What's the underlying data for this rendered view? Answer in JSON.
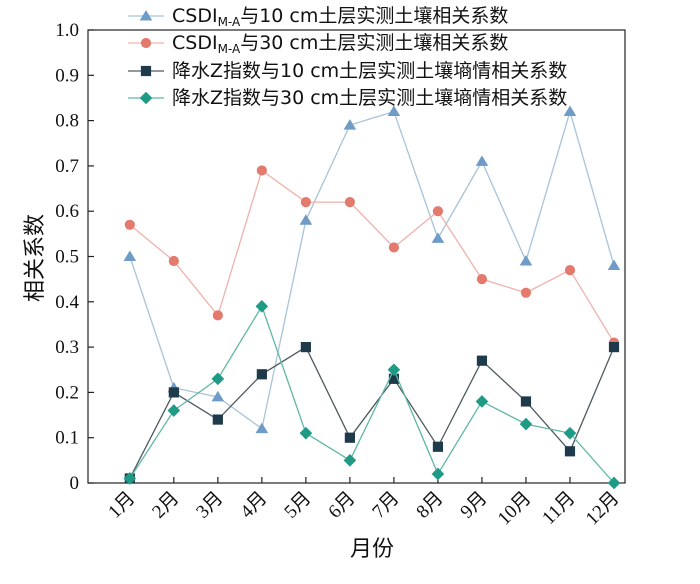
{
  "chart_data": {
    "type": "line",
    "categories": [
      "1月",
      "2月",
      "3月",
      "4月",
      "5月",
      "6月",
      "7月",
      "8月",
      "9月",
      "10月",
      "11月",
      "12月"
    ],
    "xlabel": "月份",
    "ylabel": "相关系数",
    "ylim": [
      0,
      1.0
    ],
    "yticks": [
      "0",
      "0.1",
      "0.2",
      "0.3",
      "0.4",
      "0.5",
      "0.6",
      "0.7",
      "0.8",
      "0.9",
      "1.0"
    ],
    "grid": false,
    "legend_position": "top",
    "series": [
      {
        "name_main": "CSDI",
        "name_sub": "M-A",
        "name_rest": "与10 cm土层实测土壤相关系数",
        "marker": "triangle",
        "color": "#a8c4db",
        "marker_color": "#6f9cc6",
        "values": [
          0.5,
          0.21,
          0.19,
          0.12,
          0.58,
          0.79,
          0.82,
          0.54,
          0.71,
          0.49,
          0.82,
          0.48
        ]
      },
      {
        "name_main": "CSDI",
        "name_sub": "M-A",
        "name_rest": "与30 cm土层实测土壤相关系数",
        "marker": "circle",
        "color": "#f0b1ab",
        "marker_color": "#e47a6d",
        "values": [
          0.57,
          0.49,
          0.37,
          0.69,
          0.62,
          0.62,
          0.52,
          0.6,
          0.45,
          0.42,
          0.47,
          0.31
        ]
      },
      {
        "name_main": "降水Z指数与10 cm土层实测土壤墒情相关系数",
        "marker": "square",
        "color": "#4d5a60",
        "marker_color": "#1f3a4a",
        "values": [
          0.01,
          0.2,
          0.14,
          0.24,
          0.3,
          0.1,
          0.23,
          0.08,
          0.27,
          0.18,
          0.07,
          0.3
        ]
      },
      {
        "name_main": "降水Z指数与30 cm土层实测土壤墒情相关系数",
        "marker": "diamond",
        "color": "#5fb7a6",
        "marker_color": "#1f9a85",
        "values": [
          0.01,
          0.16,
          0.23,
          0.39,
          0.11,
          0.05,
          0.25,
          0.02,
          0.18,
          0.13,
          0.11,
          0.0
        ]
      }
    ]
  }
}
